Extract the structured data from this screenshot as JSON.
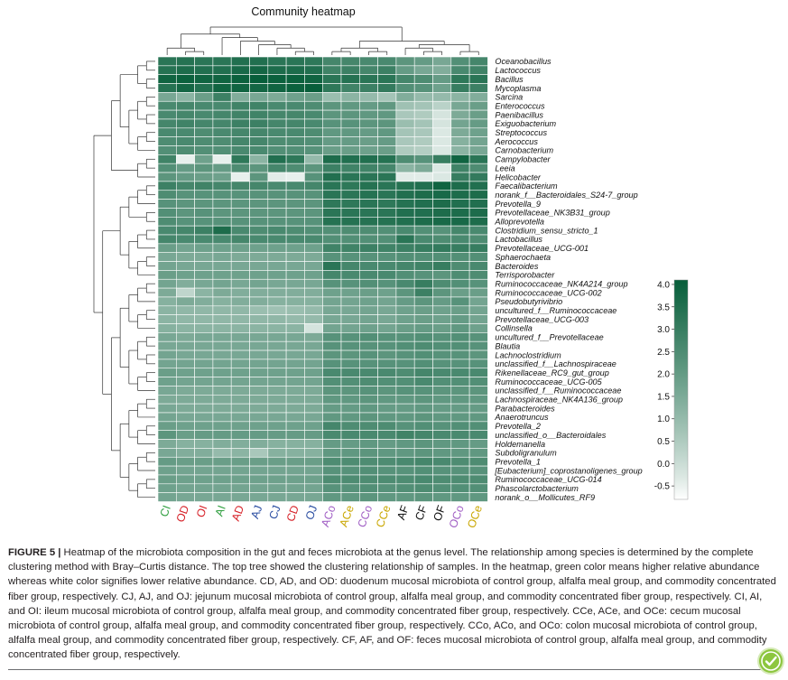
{
  "chart_data": {
    "type": "heatmap",
    "title": "Community heatmap",
    "columns": [
      "CI",
      "OD",
      "OI",
      "AI",
      "AD",
      "AJ",
      "CJ",
      "CD",
      "OJ",
      "ACo",
      "ACe",
      "CCo",
      "CCe",
      "AF",
      "CF",
      "OF",
      "OCo",
      "OCe"
    ],
    "column_colors": [
      "#2e9e3e",
      "#d62027",
      "#d62027",
      "#2e9e3e",
      "#d62027",
      "#2b4ea2",
      "#2b4ea2",
      "#d62027",
      "#2b4ea2",
      "#a05ec4",
      "#c9a600",
      "#a05ec4",
      "#c9a600",
      "#111111",
      "#111111",
      "#111111",
      "#a05ec4",
      "#c9a600"
    ],
    "rows": [
      "Oceanobacillus",
      "Lactococcus",
      "Bacillus",
      "Mycoplasma",
      "Sarcina",
      "Enterococcus",
      "Paenibacillus",
      "Exiguobacterium",
      "Streptococcus",
      "Aerococcus",
      "Carnobacterium",
      "Campylobacter",
      "Leeia",
      "Helicobacter",
      "Faecalibacterium",
      "norank_f__Bacteroidales_S24-7_group",
      "Prevotella_9",
      "Prevotellaceae_NK3B31_group",
      "Alloprevotella",
      "Clostridium_sensu_stricto_1",
      "Lactobacillus",
      "Prevotellaceae_UCG-001",
      "Sphaerochaeta",
      "Bacteroides",
      "Terrisporobacter",
      "Ruminococcaceae_NK4A214_group",
      "Ruminococcaceae_UCG-002",
      "Pseudobutyrivibrio",
      "uncultured_f__Ruminococcaceae",
      "Prevotellaceae_UCG-003",
      "Collinsella",
      "uncultured_f__Prevotellaceae",
      "Blautia",
      "Lachnoclostridium",
      "unclassified_f__Lachnospiraceae",
      "Rikenellaceae_RC9_gut_group",
      "Ruminococcaceae_UCG-005",
      "unclassified_f__Ruminococcaceae",
      "Lachnospiraceae_NK4A136_group",
      "Parabacteroides",
      "Anaerotruncus",
      "Prevotella_2",
      "unclassified_o__Bacteroidales",
      "Holdemanella",
      "Subdoligranulum",
      "Prevotella_1",
      "[Eubacterium]_coprostanoligenes_group",
      "Ruminococcaceae_UCG-014",
      "Phascolarctobacterium",
      "norank_o__Mollicutes_RF9"
    ],
    "values": [
      [
        3.3,
        3.4,
        3.3,
        3.3,
        3.5,
        3.5,
        3.3,
        3.3,
        3.2,
        2.7,
        2.7,
        2.6,
        2.6,
        2.2,
        2.0,
        1.6,
        2.4,
        2.7
      ],
      [
        3.4,
        3.6,
        3.5,
        3.5,
        3.7,
        3.8,
        3.6,
        3.6,
        3.5,
        2.8,
        2.9,
        2.7,
        2.9,
        2.0,
        1.6,
        1.4,
        2.6,
        2.8
      ],
      [
        3.9,
        4.0,
        3.9,
        3.9,
        4.0,
        4.1,
        4.0,
        4.0,
        3.9,
        3.3,
        3.4,
        3.3,
        3.3,
        2.7,
        2.5,
        2.0,
        3.2,
        3.3
      ],
      [
        3.4,
        3.8,
        3.5,
        3.9,
        3.9,
        3.8,
        3.9,
        4.0,
        4.1,
        3.2,
        2.8,
        2.9,
        3.1,
        2.4,
        2.3,
        1.8,
        3.0,
        2.9
      ],
      [
        1.6,
        1.2,
        1.9,
        2.9,
        1.4,
        1.6,
        1.5,
        1.8,
        1.9,
        0.9,
        1.2,
        1.0,
        0.7,
        1.4,
        1.0,
        1.0,
        1.2,
        1.4
      ],
      [
        2.6,
        2.7,
        2.6,
        2.6,
        2.8,
        2.8,
        2.6,
        2.6,
        2.5,
        2.2,
        2.1,
        2.0,
        2.1,
        0.8,
        0.7,
        0.3,
        1.6,
        1.9
      ],
      [
        2.6,
        2.7,
        2.6,
        2.7,
        2.8,
        2.8,
        2.7,
        2.7,
        2.6,
        2.2,
        2.2,
        2.1,
        2.1,
        0.6,
        0.5,
        -0.2,
        1.5,
        1.9
      ],
      [
        2.7,
        2.8,
        2.7,
        2.7,
        2.9,
        2.9,
        2.7,
        2.7,
        2.6,
        2.3,
        2.3,
        2.2,
        2.2,
        0.9,
        0.7,
        -0.2,
        1.7,
        2.0
      ],
      [
        2.6,
        2.6,
        2.5,
        2.6,
        2.7,
        2.7,
        2.6,
        2.6,
        2.5,
        2.1,
        2.1,
        2.0,
        2.1,
        0.7,
        0.6,
        -0.3,
        1.5,
        1.8
      ],
      [
        2.5,
        2.6,
        2.5,
        2.5,
        2.7,
        2.7,
        2.5,
        2.5,
        2.4,
        2.0,
        2.0,
        1.9,
        2.0,
        0.6,
        0.5,
        -0.3,
        1.3,
        1.7
      ],
      [
        2.4,
        2.5,
        2.4,
        2.4,
        2.6,
        2.6,
        2.4,
        2.4,
        2.3,
        1.9,
        1.9,
        1.8,
        1.9,
        0.5,
        0.4,
        -0.3,
        1.2,
        1.6
      ],
      [
        2.8,
        -0.5,
        1.8,
        -0.5,
        3.2,
        1.2,
        3.5,
        3.2,
        1.0,
        3.6,
        3.5,
        3.5,
        3.4,
        2.5,
        2.3,
        3.0,
        3.9,
        3.3
      ],
      [
        2.4,
        2.0,
        2.2,
        2.0,
        2.5,
        2.2,
        2.7,
        2.5,
        2.2,
        2.9,
        2.8,
        2.8,
        2.7,
        1.2,
        1.5,
        -0.3,
        2.8,
        2.5
      ],
      [
        2.2,
        2.0,
        1.9,
        1.8,
        -0.5,
        2.2,
        -0.4,
        -0.5,
        2.3,
        3.5,
        3.3,
        3.3,
        3.3,
        -0.4,
        -0.4,
        -0.3,
        3.0,
        3.1
      ],
      [
        2.9,
        2.7,
        2.8,
        2.7,
        2.7,
        2.7,
        2.6,
        2.6,
        2.7,
        3.3,
        3.2,
        3.4,
        3.3,
        3.4,
        3.5,
        3.9,
        3.6,
        3.5
      ],
      [
        2.5,
        2.3,
        2.3,
        2.3,
        2.3,
        2.3,
        2.3,
        2.3,
        2.3,
        3.3,
        3.3,
        3.4,
        3.3,
        3.5,
        3.6,
        3.7,
        3.6,
        3.6
      ],
      [
        2.3,
        2.2,
        2.2,
        2.2,
        2.2,
        2.2,
        2.2,
        2.2,
        2.2,
        3.2,
        3.2,
        3.3,
        3.2,
        3.4,
        3.5,
        3.6,
        3.5,
        3.5
      ],
      [
        2.4,
        2.2,
        2.3,
        2.2,
        2.2,
        2.2,
        2.2,
        2.2,
        2.2,
        3.3,
        3.3,
        3.3,
        3.3,
        3.5,
        3.5,
        3.6,
        3.6,
        3.6
      ],
      [
        2.5,
        2.3,
        2.3,
        2.3,
        2.3,
        2.3,
        2.3,
        2.3,
        2.3,
        3.4,
        3.4,
        3.4,
        3.4,
        3.5,
        3.6,
        3.7,
        3.7,
        3.6
      ],
      [
        2.6,
        2.7,
        2.9,
        3.6,
        2.6,
        2.5,
        2.6,
        2.5,
        2.4,
        2.4,
        2.5,
        2.5,
        2.4,
        2.6,
        2.4,
        2.3,
        2.7,
        2.6
      ],
      [
        2.7,
        2.6,
        2.6,
        2.6,
        2.7,
        2.6,
        2.6,
        2.6,
        2.6,
        2.4,
        2.4,
        2.4,
        2.4,
        3.3,
        2.6,
        2.5,
        2.6,
        2.5
      ],
      [
        1.9,
        1.7,
        1.8,
        1.8,
        1.8,
        1.8,
        1.8,
        1.8,
        1.8,
        2.8,
        2.8,
        2.9,
        2.8,
        2.9,
        3.0,
        3.1,
        3.0,
        3.0
      ],
      [
        1.6,
        1.5,
        1.5,
        1.6,
        1.5,
        1.5,
        1.5,
        1.5,
        1.5,
        2.3,
        2.3,
        2.3,
        2.3,
        2.4,
        2.4,
        2.4,
        2.4,
        2.4
      ],
      [
        1.7,
        1.6,
        1.6,
        1.6,
        1.6,
        1.6,
        1.6,
        1.6,
        1.6,
        3.3,
        2.7,
        2.6,
        2.6,
        2.7,
        2.8,
        3.0,
        2.5,
        2.6
      ],
      [
        1.9,
        1.8,
        1.8,
        1.8,
        1.8,
        1.8,
        1.8,
        1.8,
        1.8,
        2.7,
        2.6,
        2.6,
        2.6,
        2.4,
        2.3,
        2.2,
        2.5,
        2.5
      ],
      [
        1.7,
        1.4,
        1.6,
        1.7,
        1.6,
        1.7,
        1.6,
        1.6,
        1.6,
        2.3,
        2.3,
        2.4,
        2.3,
        2.6,
        3.0,
        2.5,
        2.4,
        2.3
      ],
      [
        1.5,
        0.2,
        1.2,
        1.5,
        1.4,
        1.4,
        1.4,
        1.4,
        1.4,
        1.8,
        1.8,
        1.9,
        1.8,
        2.2,
        2.9,
        2.2,
        1.9,
        1.9
      ],
      [
        1.3,
        1.5,
        1.4,
        1.3,
        1.4,
        1.4,
        1.3,
        1.3,
        1.3,
        1.7,
        1.7,
        1.8,
        1.7,
        2.0,
        2.2,
        2.0,
        2.3,
        1.7
      ],
      [
        1.2,
        1.1,
        1.1,
        1.1,
        1.1,
        0.9,
        0.8,
        0.9,
        1.0,
        1.6,
        1.6,
        1.7,
        1.6,
        1.8,
        1.9,
        1.8,
        1.9,
        1.7
      ],
      [
        1.2,
        1.1,
        1.1,
        1.1,
        1.1,
        1.1,
        1.1,
        1.0,
        1.0,
        1.6,
        1.6,
        1.7,
        1.6,
        1.8,
        1.9,
        1.8,
        2.0,
        1.7
      ],
      [
        1.3,
        1.2,
        1.2,
        1.2,
        1.2,
        1.2,
        1.2,
        1.2,
        -0.2,
        1.7,
        1.7,
        1.8,
        1.7,
        1.9,
        2.0,
        1.9,
        2.1,
        1.8
      ],
      [
        1.6,
        1.5,
        1.6,
        1.6,
        1.6,
        1.6,
        1.6,
        1.6,
        1.5,
        2.3,
        2.3,
        2.4,
        2.3,
        2.3,
        2.4,
        2.3,
        2.4,
        2.3
      ],
      [
        1.6,
        1.6,
        1.6,
        1.6,
        1.6,
        1.6,
        1.6,
        1.6,
        1.6,
        2.3,
        2.3,
        2.3,
        2.3,
        2.4,
        2.5,
        2.4,
        2.4,
        2.3
      ],
      [
        1.7,
        1.6,
        1.6,
        1.6,
        1.6,
        1.6,
        1.6,
        1.6,
        1.6,
        2.2,
        2.2,
        2.3,
        2.2,
        2.3,
        2.4,
        2.3,
        2.3,
        2.2
      ],
      [
        1.7,
        1.7,
        1.7,
        1.7,
        1.7,
        1.7,
        1.7,
        1.7,
        1.7,
        2.3,
        2.3,
        2.3,
        2.3,
        2.3,
        2.4,
        2.3,
        2.3,
        2.3
      ],
      [
        1.9,
        1.8,
        1.8,
        1.8,
        1.8,
        1.8,
        1.8,
        1.8,
        1.8,
        2.6,
        2.6,
        2.6,
        2.6,
        2.5,
        2.7,
        2.6,
        2.6,
        2.6
      ],
      [
        1.8,
        1.7,
        1.7,
        1.7,
        1.7,
        1.7,
        1.7,
        1.7,
        1.7,
        2.4,
        2.4,
        2.5,
        2.4,
        2.4,
        2.6,
        2.4,
        2.4,
        2.4
      ],
      [
        1.6,
        1.5,
        1.5,
        1.5,
        1.5,
        1.5,
        1.5,
        1.5,
        1.5,
        2.2,
        2.2,
        2.3,
        2.2,
        2.3,
        2.3,
        2.2,
        2.2,
        2.2
      ],
      [
        1.5,
        1.5,
        1.5,
        1.5,
        1.5,
        1.5,
        1.5,
        1.5,
        1.5,
        2.1,
        2.1,
        2.2,
        2.1,
        2.1,
        2.2,
        2.1,
        2.1,
        2.1
      ],
      [
        1.6,
        1.5,
        1.5,
        1.5,
        1.5,
        1.5,
        1.5,
        1.5,
        1.5,
        2.0,
        2.0,
        2.1,
        2.0,
        2.0,
        2.1,
        2.0,
        2.0,
        2.0
      ],
      [
        1.7,
        1.6,
        1.6,
        1.6,
        1.6,
        1.6,
        1.6,
        1.6,
        1.6,
        2.1,
        2.1,
        2.2,
        2.1,
        2.1,
        2.2,
        2.1,
        2.1,
        2.1
      ],
      [
        1.9,
        1.8,
        1.8,
        1.8,
        1.8,
        1.8,
        1.8,
        1.8,
        1.8,
        2.7,
        2.5,
        2.5,
        2.5,
        2.3,
        2.4,
        2.3,
        2.4,
        2.4
      ],
      [
        2.2,
        1.9,
        2.0,
        2.0,
        2.0,
        2.0,
        2.0,
        2.0,
        2.0,
        2.6,
        2.6,
        2.6,
        2.6,
        2.8,
        2.7,
        2.6,
        2.6,
        2.6
      ],
      [
        1.5,
        1.3,
        1.3,
        1.4,
        1.4,
        1.4,
        1.3,
        1.3,
        1.3,
        2.0,
        2.0,
        2.1,
        2.0,
        2.1,
        2.2,
        2.1,
        2.1,
        2.0
      ],
      [
        1.6,
        1.4,
        1.4,
        1.0,
        1.2,
        0.6,
        1.3,
        1.3,
        1.3,
        2.1,
        2.1,
        2.2,
        2.1,
        2.1,
        2.2,
        2.1,
        2.1,
        2.1
      ],
      [
        2.0,
        1.9,
        1.9,
        1.9,
        1.9,
        1.9,
        1.9,
        1.9,
        1.9,
        2.5,
        2.5,
        2.5,
        2.5,
        2.6,
        2.7,
        2.6,
        2.5,
        2.5
      ],
      [
        1.8,
        1.7,
        1.7,
        1.7,
        1.7,
        1.7,
        1.7,
        1.7,
        1.7,
        2.3,
        2.3,
        2.4,
        2.3,
        2.3,
        2.4,
        2.3,
        2.3,
        2.3
      ],
      [
        1.9,
        1.8,
        1.8,
        1.8,
        1.8,
        1.8,
        1.8,
        1.8,
        1.8,
        2.5,
        2.5,
        2.5,
        2.5,
        2.5,
        2.6,
        2.5,
        2.5,
        2.5
      ],
      [
        1.8,
        1.7,
        1.7,
        1.7,
        1.7,
        1.7,
        1.7,
        1.7,
        1.7,
        2.3,
        2.3,
        2.4,
        2.3,
        2.4,
        2.5,
        2.4,
        2.4,
        2.4
      ],
      [
        1.7,
        1.6,
        1.6,
        1.6,
        1.6,
        1.6,
        1.6,
        1.6,
        1.6,
        2.1,
        2.1,
        2.2,
        2.1,
        2.1,
        2.2,
        2.1,
        2.1,
        2.1
      ]
    ],
    "colorbar": {
      "min": -0.8,
      "max": 4.1,
      "ticks": [
        "4.0",
        "3.5",
        "3.0",
        "2.5",
        "2.0",
        "1.5",
        "1.0",
        "0.5",
        "0.0",
        "-0.5"
      ],
      "color_low": "#ffffff",
      "color_high": "#075e3a"
    },
    "column_dendrogram": true,
    "row_dendrogram": true
  },
  "caption": {
    "label": "FIGURE 5 |",
    "text": " Heatmap of the microbiota composition in the gut and feces microbiota at the genus level. The relationship among species is determined by the complete clustering method with Bray–Curtis distance. The top tree showed the clustering relationship of samples. In the heatmap, green color means higher relative abundance whereas white color signifies lower relative abundance. CD, AD, and OD: duodenum mucosal microbiota of control group, alfalfa meal group, and commodity concentrated fiber group, respectively. CJ, AJ, and OJ: jejunum mucosal microbiota of control group, alfalfa meal group, and commodity concentrated fiber group, respectively. CI, AI, and OI: ileum mucosal microbiota of control group, alfalfa meal group, and commodity concentrated fiber group, respectively. CCe, ACe, and OCe: cecum mucosal microbiota of control group, alfalfa meal group, and commodity concentrated fiber group, respectively. CCo, ACo, and OCo: colon mucosal microbiota of control group, alfalfa meal group, and commodity concentrated fiber group, respectively. CF, AF, and OF: feces mucosal microbiota of control group, alfalfa meal group, and commodity concentrated fiber group, respectively."
  },
  "badge_icon": "check-icon"
}
